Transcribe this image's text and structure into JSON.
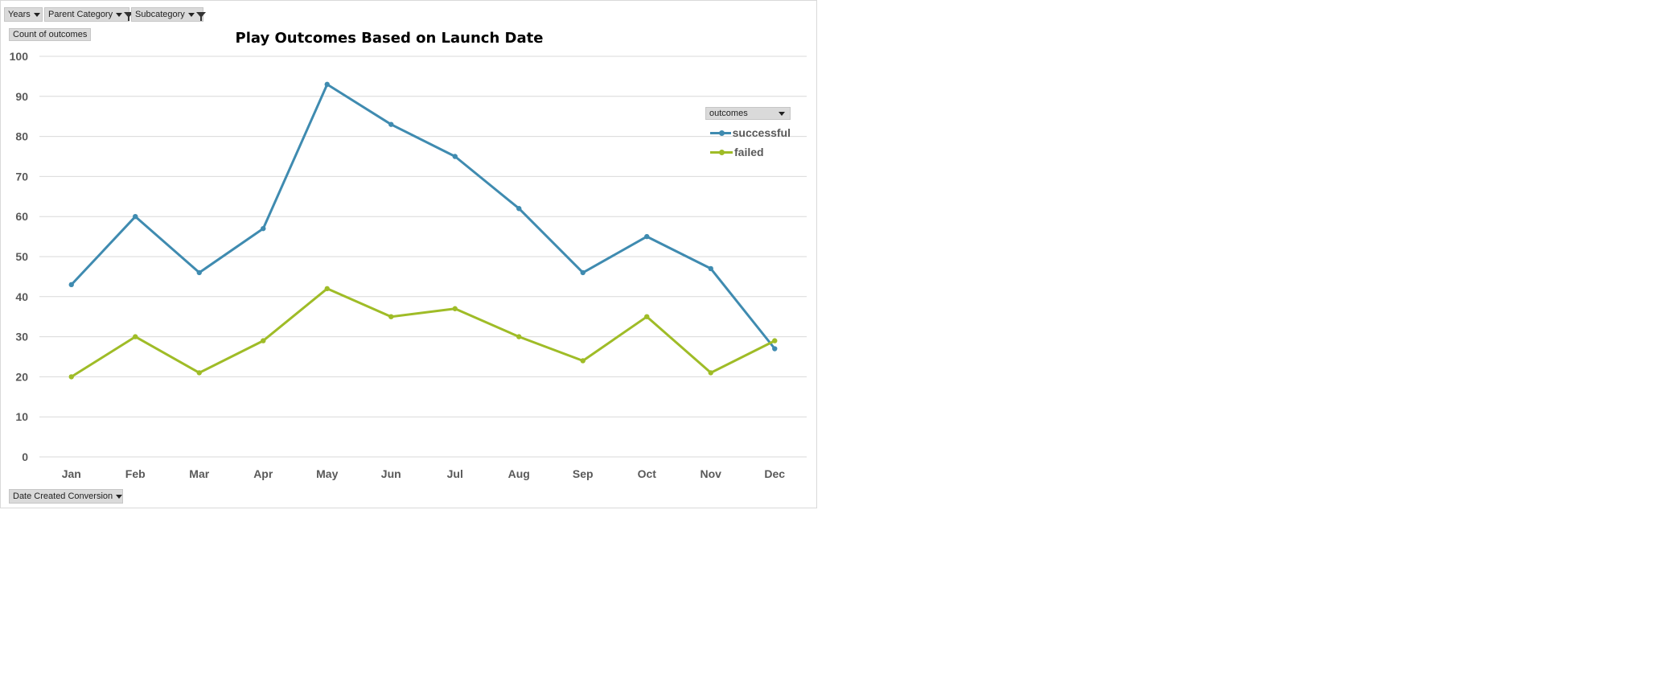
{
  "filters": [
    {
      "label": "Years",
      "has_filter": false
    },
    {
      "label": "Parent Category",
      "has_filter": true
    },
    {
      "label": "Subcategory",
      "has_filter": true
    }
  ],
  "value_field": "Count of outcomes",
  "axis_field": "Date Created Conversion",
  "legend_field": "outcomes",
  "colors": {
    "successful": "#3f8bb0",
    "failed": "#9fbc27",
    "grid": "#d9d9d9"
  },
  "chart_data": {
    "type": "line",
    "title": "Play Outcomes Based on Launch Date",
    "xlabel": "",
    "ylabel": "",
    "categories": [
      "Jan",
      "Feb",
      "Mar",
      "Apr",
      "May",
      "Jun",
      "Jul",
      "Aug",
      "Sep",
      "Oct",
      "Nov",
      "Dec"
    ],
    "ylim": [
      0,
      100
    ],
    "yticks": [
      0,
      10,
      20,
      30,
      40,
      50,
      60,
      70,
      80,
      90,
      100
    ],
    "grid": true,
    "legend_position": "right",
    "series": [
      {
        "name": "successful",
        "values": [
          43,
          60,
          46,
          57,
          93,
          83,
          75,
          62,
          46,
          55,
          47,
          27
        ]
      },
      {
        "name": "failed",
        "values": [
          20,
          30,
          21,
          29,
          42,
          35,
          37,
          30,
          24,
          35,
          21,
          29
        ]
      }
    ]
  }
}
